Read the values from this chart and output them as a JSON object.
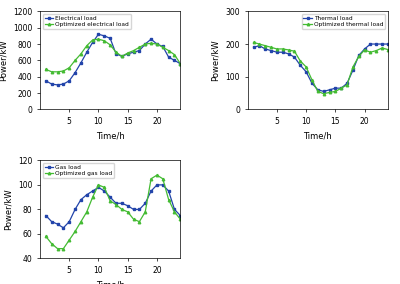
{
  "time": [
    1,
    2,
    3,
    4,
    5,
    6,
    7,
    8,
    9,
    10,
    11,
    12,
    13,
    14,
    15,
    16,
    17,
    18,
    19,
    20,
    21,
    22,
    23,
    24
  ],
  "elec_load": [
    350,
    310,
    300,
    310,
    350,
    450,
    570,
    700,
    820,
    920,
    900,
    870,
    680,
    650,
    680,
    700,
    720,
    800,
    860,
    800,
    770,
    640,
    600,
    560
  ],
  "elec_opt": [
    490,
    460,
    460,
    470,
    510,
    600,
    680,
    780,
    850,
    860,
    840,
    790,
    700,
    650,
    690,
    720,
    760,
    800,
    810,
    800,
    760,
    720,
    670,
    560
  ],
  "thermal_load": [
    190,
    195,
    185,
    180,
    175,
    175,
    170,
    160,
    135,
    115,
    80,
    60,
    55,
    60,
    65,
    65,
    80,
    120,
    165,
    185,
    200,
    200,
    200,
    200
  ],
  "thermal_opt": [
    205,
    200,
    195,
    190,
    185,
    185,
    182,
    178,
    148,
    130,
    90,
    55,
    48,
    52,
    55,
    65,
    75,
    130,
    162,
    182,
    175,
    180,
    188,
    183
  ],
  "gas_load": [
    75,
    70,
    68,
    65,
    70,
    80,
    88,
    92,
    95,
    98,
    95,
    90,
    85,
    85,
    83,
    80,
    80,
    85,
    95,
    100,
    100,
    95,
    80,
    75
  ],
  "gas_opt": [
    58,
    52,
    48,
    48,
    55,
    62,
    70,
    78,
    90,
    100,
    98,
    87,
    84,
    80,
    78,
    72,
    70,
    78,
    105,
    108,
    105,
    88,
    78,
    72
  ],
  "elec_ylabel": "Power/kW",
  "thermal_ylabel": "Power/kW",
  "gas_ylabel": "Power/kW",
  "xlabel": "Time/h",
  "elec_ylim": [
    0,
    1200
  ],
  "thermal_ylim": [
    0,
    300
  ],
  "gas_ylim": [
    40,
    120
  ],
  "elec_yticks": [
    0,
    200,
    400,
    600,
    800,
    1000,
    1200
  ],
  "thermal_yticks": [
    0,
    100,
    200,
    300
  ],
  "gas_yticks": [
    40,
    60,
    80,
    100,
    120
  ],
  "blue_color": "#2244aa",
  "green_color": "#44bb33",
  "elec_label1": "Electrical load",
  "elec_label2": "Optimized electrical load",
  "thermal_label1": "Thermal load",
  "thermal_label2": "Optimized thermal load",
  "gas_label1": "Gas load",
  "gas_label2": "Optimized gas load",
  "xticks": [
    5,
    10,
    15,
    20
  ],
  "xlim": [
    0,
    24
  ]
}
